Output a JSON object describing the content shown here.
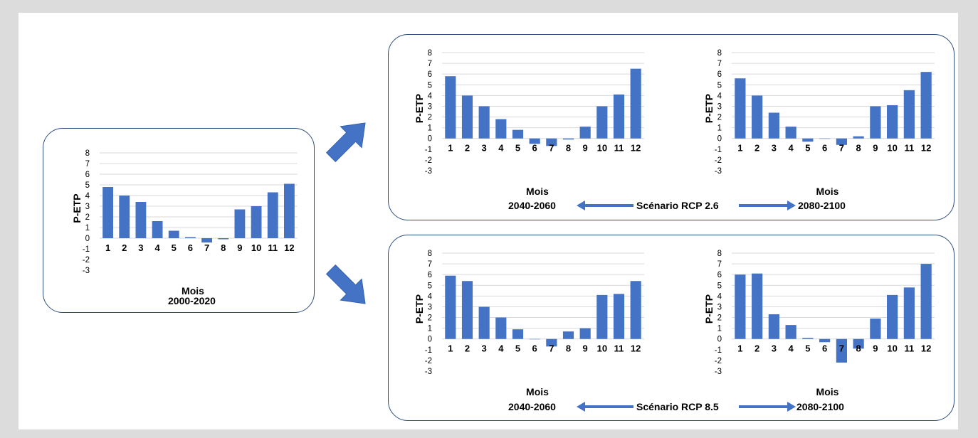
{
  "panels": {
    "baseline": {
      "period": "2000-2020"
    },
    "rcp26": {
      "scenario": "Scénario RCP 2.6",
      "left_period": "2040-2060",
      "right_period": "2080-2100"
    },
    "rcp85": {
      "scenario": "Scénario RCP 8.5",
      "left_period": "2040-2060",
      "right_period": "2080-2100"
    }
  },
  "colors": {
    "bar": "#4472c4",
    "grid": "#d9d9d9",
    "border": "#2f4f7f",
    "arrow": "#4472c4"
  },
  "chart_data": [
    {
      "id": "baseline-2000-2020",
      "type": "bar",
      "categories": [
        "1",
        "2",
        "3",
        "4",
        "5",
        "6",
        "7",
        "8",
        "9",
        "10",
        "11",
        "12"
      ],
      "values": [
        4.8,
        4.0,
        3.4,
        1.6,
        0.7,
        0.1,
        -0.4,
        -0.1,
        2.7,
        3.0,
        4.3,
        5.1
      ],
      "xlabel": "Mois",
      "ylabel": "P-ETP",
      "ylim": [
        -3,
        8
      ],
      "yticks": [
        8,
        7,
        6,
        5,
        4,
        3,
        2,
        1,
        0,
        -1,
        -2,
        -3
      ],
      "grid": true
    },
    {
      "id": "rcp26-2040-2060",
      "type": "bar",
      "categories": [
        "1",
        "2",
        "3",
        "4",
        "5",
        "6",
        "7",
        "8",
        "9",
        "10",
        "11",
        "12"
      ],
      "values": [
        5.8,
        4.0,
        3.0,
        1.8,
        0.8,
        -0.5,
        -0.7,
        -0.1,
        1.1,
        3.0,
        4.1,
        6.5
      ],
      "xlabel": "Mois",
      "ylabel": "P-ETP",
      "ylim": [
        -3,
        8
      ],
      "yticks": [
        8,
        7,
        6,
        5,
        4,
        3,
        2,
        1,
        0,
        -1,
        -2,
        -3
      ],
      "grid": true
    },
    {
      "id": "rcp26-2080-2100",
      "type": "bar",
      "categories": [
        "1",
        "2",
        "3",
        "4",
        "5",
        "6",
        "7",
        "8",
        "9",
        "10",
        "11",
        "12"
      ],
      "values": [
        5.6,
        4.0,
        2.4,
        1.1,
        -0.3,
        0.0,
        -0.6,
        0.2,
        3.0,
        3.1,
        4.5,
        6.2
      ],
      "xlabel": "Mois",
      "ylabel": "P-ETP",
      "ylim": [
        -3,
        8
      ],
      "yticks": [
        8,
        7,
        6,
        5,
        4,
        3,
        2,
        1,
        0,
        -1,
        -2,
        -3
      ],
      "grid": true
    },
    {
      "id": "rcp85-2040-2060",
      "type": "bar",
      "categories": [
        "1",
        "2",
        "3",
        "4",
        "5",
        "6",
        "7",
        "8",
        "9",
        "10",
        "11",
        "12"
      ],
      "values": [
        5.9,
        5.4,
        3.0,
        2.0,
        0.9,
        0.0,
        -0.7,
        0.7,
        1.0,
        4.1,
        4.2,
        5.4
      ],
      "xlabel": "Mois",
      "ylabel": "P-ETP",
      "ylim": [
        -3,
        8
      ],
      "yticks": [
        8,
        7,
        6,
        5,
        4,
        3,
        2,
        1,
        0,
        -1,
        -2,
        -3
      ],
      "grid": true
    },
    {
      "id": "rcp85-2080-2100",
      "type": "bar",
      "categories": [
        "1",
        "2",
        "3",
        "4",
        "5",
        "6",
        "7",
        "8",
        "9",
        "10",
        "11",
        "12"
      ],
      "values": [
        6.0,
        6.1,
        2.3,
        1.3,
        0.1,
        -0.3,
        -2.2,
        -0.9,
        1.9,
        4.1,
        4.8,
        7.0
      ],
      "xlabel": "Mois",
      "ylabel": "P-ETP",
      "ylim": [
        -3,
        8
      ],
      "yticks": [
        8,
        7,
        6,
        5,
        4,
        3,
        2,
        1,
        0,
        -1,
        -2,
        -3
      ],
      "grid": true
    }
  ]
}
